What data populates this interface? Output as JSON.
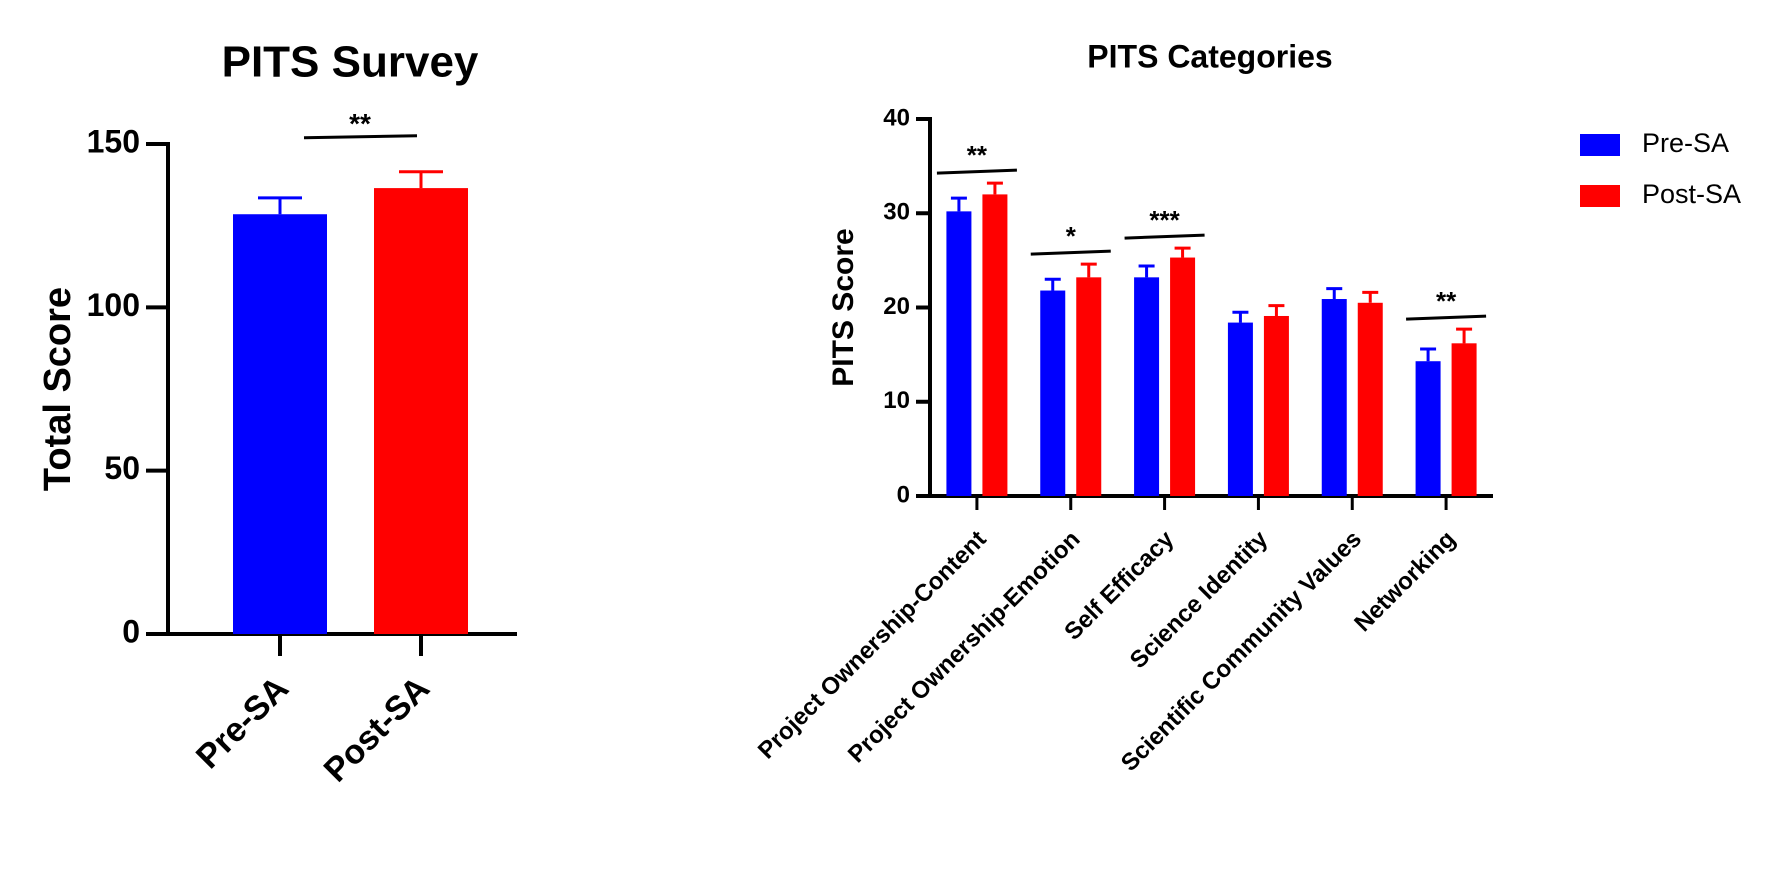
{
  "chart_data": [
    {
      "type": "bar",
      "title": "PITS Survey",
      "ylabel": "Total Score",
      "categories": [
        "Pre-SA",
        "Post-SA"
      ],
      "values": [
        128.5,
        136.5
      ],
      "errors": [
        5,
        5
      ],
      "colors": [
        "#0000ff",
        "#ff0000"
      ],
      "significance": "**",
      "ylim": [
        0,
        150
      ],
      "yticks": [
        0,
        50,
        100,
        150
      ]
    },
    {
      "type": "grouped-bar",
      "title": "PITS Categories",
      "ylabel": "PITS Score",
      "categories": [
        "Project Ownership-Content",
        "Project Ownership-Emotion",
        "Self Efficacy",
        "Science Identity",
        "Scientific Community Values",
        "Networking"
      ],
      "series": [
        {
          "name": "Pre-SA",
          "color": "#0000ff",
          "values": [
            30.2,
            21.8,
            23.2,
            18.4,
            20.9,
            14.3
          ],
          "errors": [
            1.4,
            1.2,
            1.2,
            1.1,
            1.1,
            1.3
          ]
        },
        {
          "name": "Post-SA",
          "color": "#ff0000",
          "values": [
            32.0,
            23.2,
            25.3,
            19.1,
            20.5,
            16.2
          ],
          "errors": [
            1.2,
            1.4,
            1.0,
            1.1,
            1.1,
            1.5
          ]
        }
      ],
      "significance": [
        "**",
        "*",
        "***",
        null,
        null,
        "**"
      ],
      "ylim": [
        0,
        40
      ],
      "yticks": [
        0,
        10,
        20,
        30,
        40
      ],
      "legend": "top-right"
    }
  ]
}
